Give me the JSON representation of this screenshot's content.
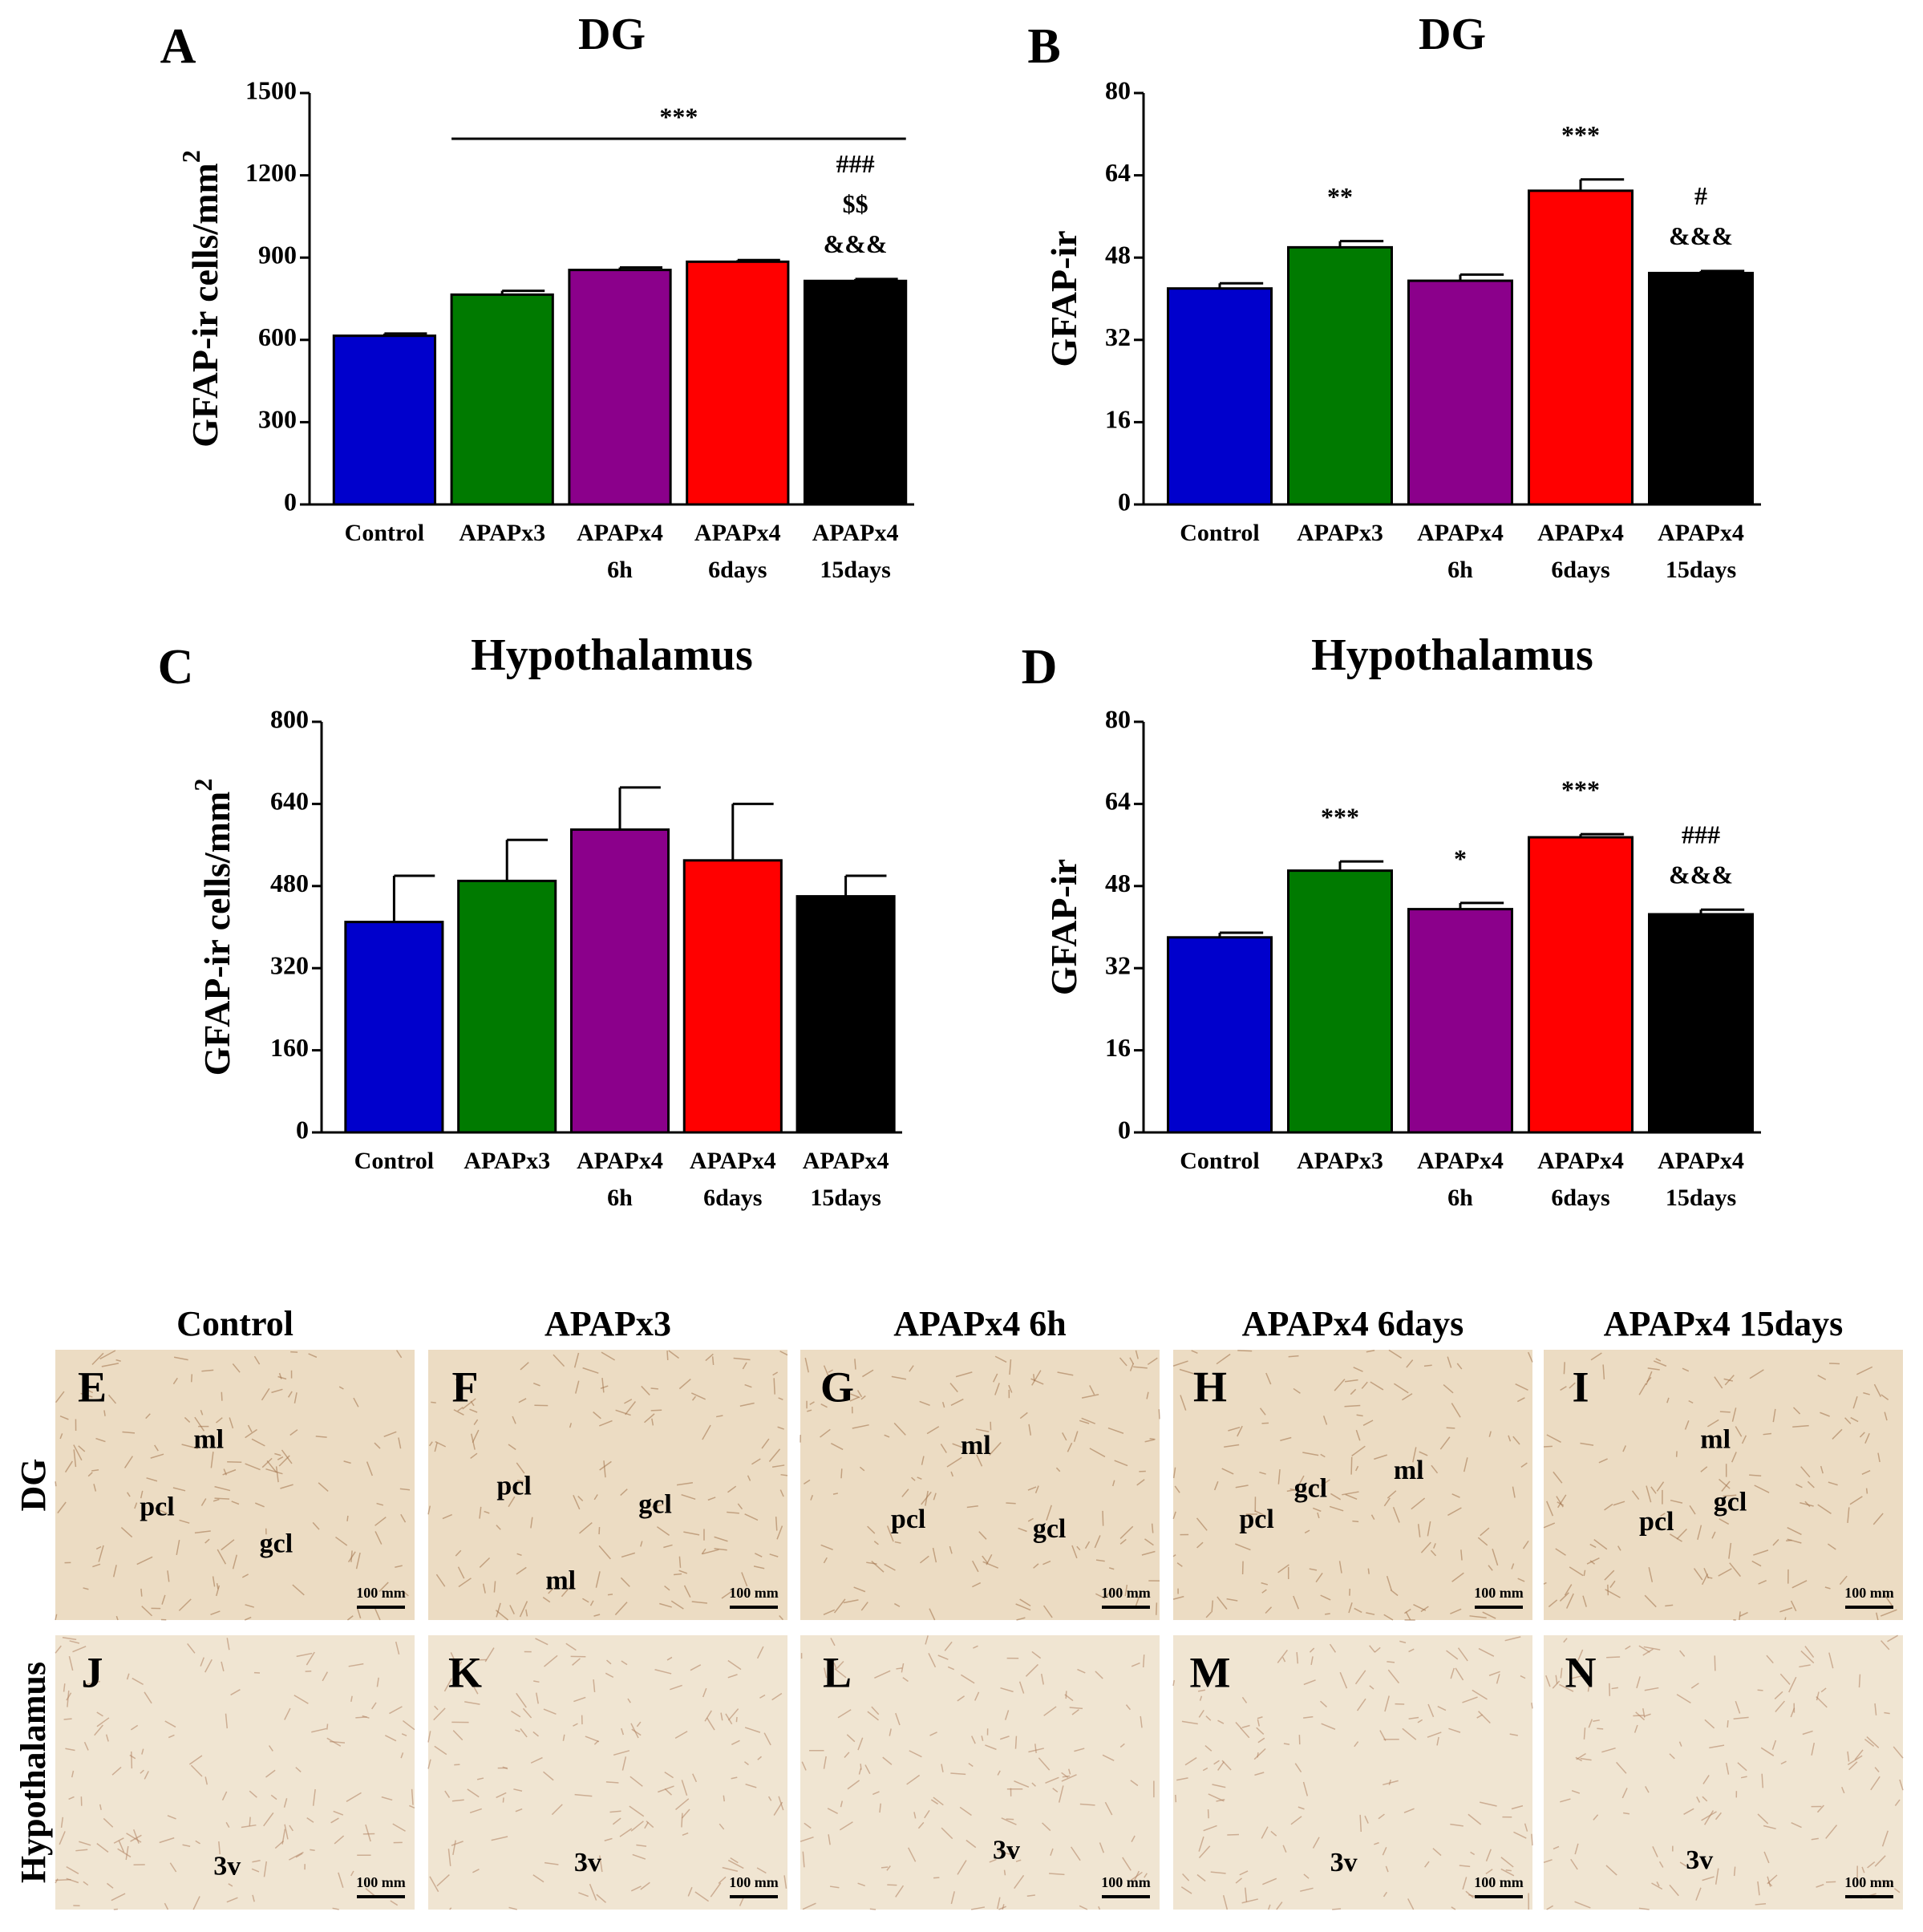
{
  "chart_data": [
    {
      "type": "bar",
      "panel": "A",
      "title": "DG",
      "y_label": "GFAP-ir cells/mm",
      "y_label_superscript": "2",
      "categories": [
        [
          "Control"
        ],
        [
          "APAPx3"
        ],
        [
          "APAPx4",
          "6h"
        ],
        [
          "APAPx4",
          "6days"
        ],
        [
          "APAPx4",
          "15days"
        ]
      ],
      "values": [
        615,
        765,
        855,
        885,
        815
      ],
      "errors": [
        8,
        14,
        9,
        6,
        7
      ],
      "colors": [
        "#0000cc",
        "#007a00",
        "#8b008b",
        "#ff0000",
        "#000000"
      ],
      "ylim": [
        0,
        1500
      ],
      "yticks": [
        0,
        300,
        600,
        900,
        1200,
        1500
      ],
      "significance": [
        null,
        null,
        null,
        null,
        [
          "###",
          "$$",
          "&&&"
        ]
      ],
      "bracket": {
        "label": "***",
        "categories": [
          1,
          4
        ]
      }
    },
    {
      "type": "bar",
      "panel": "B",
      "title": "DG",
      "y_label": "GFAP-ir",
      "categories": [
        [
          "Control"
        ],
        [
          "APAPx3"
        ],
        [
          "APAPx4",
          "6h"
        ],
        [
          "APAPx4",
          "6days"
        ],
        [
          "APAPx4",
          "15days"
        ]
      ],
      "values": [
        42,
        50,
        43.5,
        61,
        45
      ],
      "errors": [
        1,
        1.2,
        1.2,
        2.2,
        0.4
      ],
      "colors": [
        "#0000cc",
        "#007a00",
        "#8b008b",
        "#ff0000",
        "#000000"
      ],
      "ylim": [
        0,
        80
      ],
      "yticks": [
        0,
        16,
        32,
        48,
        64,
        80
      ],
      "significance": [
        null,
        [
          "**"
        ],
        null,
        [
          "***"
        ],
        [
          "#",
          "&&&"
        ]
      ]
    },
    {
      "type": "bar",
      "panel": "C",
      "title": "Hypothalamus",
      "y_label": "GFAP-ir cells/mm",
      "y_label_superscript": "2",
      "categories": [
        [
          "Control"
        ],
        [
          "APAPx3"
        ],
        [
          "APAPx4",
          "6h"
        ],
        [
          "APAPx4",
          "6days"
        ],
        [
          "APAPx4",
          "15days"
        ]
      ],
      "values": [
        410,
        490,
        590,
        530,
        460
      ],
      "errors": [
        90,
        80,
        82,
        110,
        40
      ],
      "colors": [
        "#0000cc",
        "#007a00",
        "#8b008b",
        "#ff0000",
        "#000000"
      ],
      "ylim": [
        0,
        800
      ],
      "yticks": [
        0,
        160,
        320,
        480,
        640,
        800
      ],
      "significance": [
        null,
        null,
        null,
        null,
        null
      ]
    },
    {
      "type": "bar",
      "panel": "D",
      "title": "Hypothalamus",
      "y_label": "GFAP-ir",
      "categories": [
        [
          "Control"
        ],
        [
          "APAPx3"
        ],
        [
          "APAPx4",
          "6h"
        ],
        [
          "APAPx4",
          "6days"
        ],
        [
          "APAPx4",
          "15days"
        ]
      ],
      "values": [
        38,
        51,
        43.5,
        57.5,
        42.5
      ],
      "errors": [
        0.9,
        1.8,
        1.2,
        0.6,
        0.9
      ],
      "colors": [
        "#0000cc",
        "#007a00",
        "#8b008b",
        "#ff0000",
        "#000000"
      ],
      "ylim": [
        0,
        80
      ],
      "yticks": [
        0,
        16,
        32,
        48,
        64,
        80
      ],
      "significance": [
        null,
        [
          "***"
        ],
        [
          "*"
        ],
        [
          "***"
        ],
        [
          "###",
          "&&&"
        ]
      ]
    }
  ],
  "micrographs": {
    "columns": [
      "Control",
      "APAPx3",
      "APAPx4 6h",
      "APAPx4 6days",
      "APAPx4 15days"
    ],
    "rows": [
      {
        "label": "DG",
        "panels": [
          {
            "letter": "E",
            "regions": [
              "ml",
              "pcl",
              "gcl"
            ],
            "scale": "100 mm"
          },
          {
            "letter": "F",
            "regions": [
              "pcl",
              "gcl",
              "ml"
            ],
            "scale": "100 mm"
          },
          {
            "letter": "G",
            "regions": [
              "ml",
              "pcl",
              "gcl"
            ],
            "scale": "100 mm"
          },
          {
            "letter": "H",
            "regions": [
              "gcl",
              "ml",
              "pcl"
            ],
            "scale": "100 mm"
          },
          {
            "letter": "I",
            "regions": [
              "ml",
              "gcl",
              "pcl"
            ],
            "scale": "100 mm"
          }
        ]
      },
      {
        "label": "Hypothalamus",
        "panels": [
          {
            "letter": "J",
            "regions": [
              "3v"
            ],
            "scale": "100 mm"
          },
          {
            "letter": "K",
            "regions": [
              "3v"
            ],
            "scale": "100 mm"
          },
          {
            "letter": "L",
            "regions": [
              "3v"
            ],
            "scale": "100 mm"
          },
          {
            "letter": "M",
            "regions": [
              "3v"
            ],
            "scale": "100 mm"
          },
          {
            "letter": "N",
            "regions": [
              "3v"
            ],
            "scale": "100 mm"
          }
        ]
      }
    ]
  }
}
